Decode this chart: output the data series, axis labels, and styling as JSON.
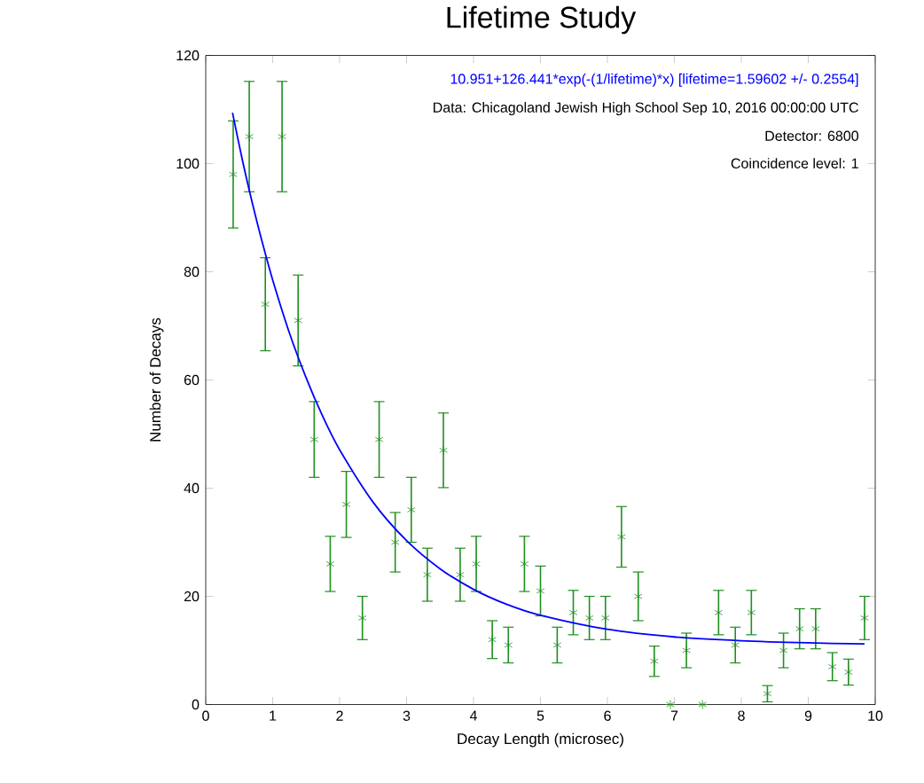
{
  "chart_data": {
    "type": "scatter",
    "title": "Lifetime Study",
    "xlabel": "Decay Length (microsec)",
    "ylabel": "Number of Decays",
    "xlim": [
      0,
      10
    ],
    "ylim": [
      0,
      120
    ],
    "xticks": [
      0,
      1,
      2,
      3,
      4,
      5,
      6,
      7,
      8,
      9,
      10
    ],
    "yticks": [
      0,
      20,
      40,
      60,
      80,
      100,
      120
    ],
    "grid": false,
    "legend": false,
    "marker": "cross",
    "annotations": [
      "Data: Chicagoland Jewish High School Sep 10, 2016 00:00:00 UTC",
      "Detector: 6800",
      "Coincidence level: 1"
    ],
    "series": [
      {
        "color": "#1f8f1f",
        "x": [
          0.41,
          0.65,
          0.89,
          1.14,
          1.38,
          1.62,
          1.86,
          2.1,
          2.34,
          2.59,
          2.83,
          3.07,
          3.31,
          3.55,
          3.8,
          4.04,
          4.28,
          4.52,
          4.76,
          5.0,
          5.25,
          5.49,
          5.73,
          5.97,
          6.21,
          6.46,
          6.7,
          6.94,
          7.18,
          7.42,
          7.66,
          7.91,
          8.15,
          8.39,
          8.63,
          8.87,
          9.11,
          9.36,
          9.6,
          9.84
        ],
        "values": [
          98,
          105,
          74,
          105,
          71,
          49,
          26,
          37,
          16,
          49,
          30,
          36,
          24,
          47,
          24,
          26,
          12,
          11,
          26,
          21,
          11,
          17,
          16,
          16,
          31,
          20,
          8,
          0,
          10,
          0,
          17,
          11,
          17,
          2,
          10,
          14,
          14,
          7,
          6,
          16
        ],
        "errors": [
          9.9,
          10.2,
          8.6,
          10.2,
          8.4,
          7,
          5.1,
          6.1,
          4,
          7,
          5.5,
          6,
          4.9,
          6.9,
          4.9,
          5.1,
          3.5,
          3.3,
          5.1,
          4.6,
          3.3,
          4.1,
          4,
          4,
          5.6,
          4.5,
          2.8,
          null,
          3.2,
          null,
          4.1,
          3.3,
          4.1,
          1.5,
          3.2,
          3.7,
          3.7,
          2.6,
          2.4,
          4
        ]
      },
      {
        "type": "line",
        "name": "10.951+126.441*exp(-(1/lifetime)*x) [lifetime=1.59602 +/- 0.2554]",
        "color": "#0000ff",
        "marker": "none",
        "line_style": "solid",
        "x": [
          0.4,
          0.55,
          0.7,
          0.85,
          1,
          1.25,
          1.5,
          1.75,
          2,
          2.5,
          3,
          3.5,
          4,
          4.5,
          5,
          6,
          7,
          8,
          9,
          9.84
        ],
        "values": [
          109.4,
          100.5,
          92.5,
          85.2,
          78.5,
          68.7,
          60.4,
          53.2,
          47.1,
          37.4,
          30.3,
          25.1,
          21.3,
          18.5,
          16.5,
          13.9,
          12.5,
          11.8,
          11.4,
          11.2
        ]
      }
    ]
  }
}
